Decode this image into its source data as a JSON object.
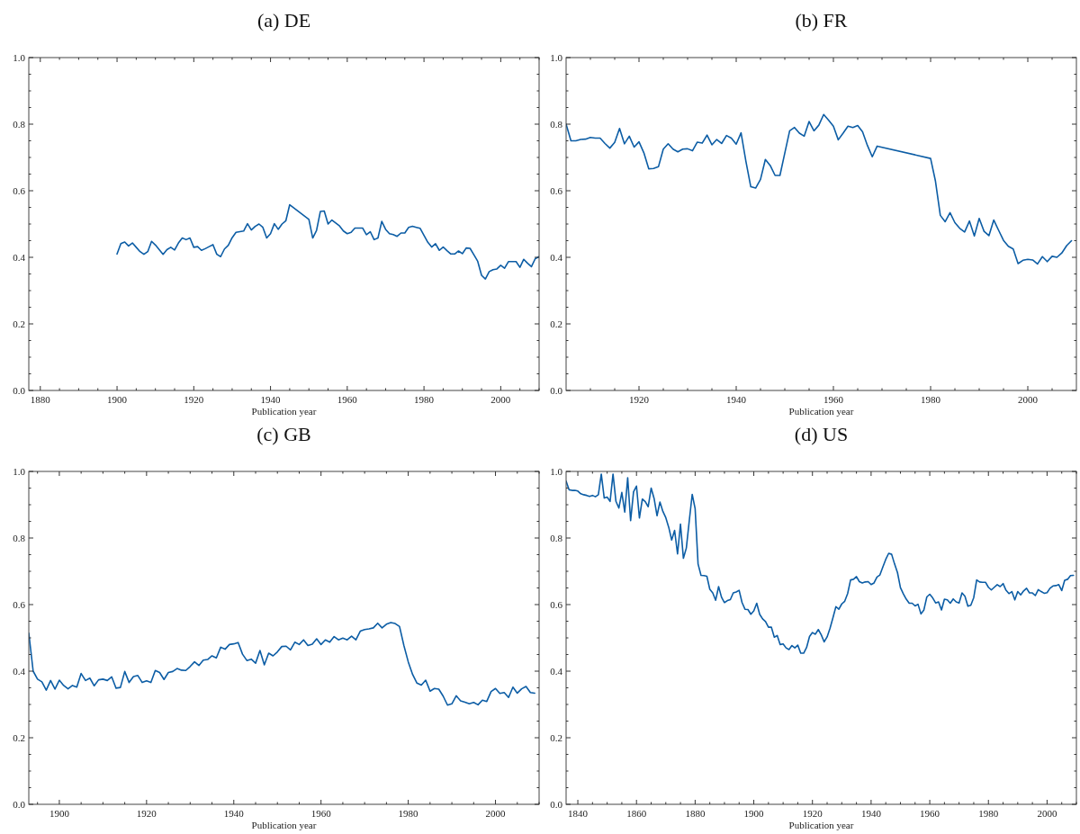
{
  "chart_data": [
    {
      "type": "line",
      "title": "(a) DE",
      "xlabel": "Publication year",
      "xlim": [
        1877,
        2010
      ],
      "ylim": [
        0,
        1
      ],
      "xticks": [
        1880,
        {
          "value": 1885,
          "label": null
        },
        {
          "value": 1890,
          "label": null
        },
        {
          "value": 1895,
          "label": null
        },
        1900,
        {
          "value": 1905,
          "label": null
        },
        {
          "value": 1910,
          "label": null
        },
        {
          "value": 1915,
          "label": null
        },
        1920,
        {
          "value": 1925,
          "label": null
        },
        {
          "value": 1930,
          "label": null
        },
        {
          "value": 1935,
          "label": null
        },
        1940,
        {
          "value": 1945,
          "label": null
        },
        {
          "value": 1950,
          "label": null
        },
        {
          "value": 1955,
          "label": null
        },
        1960,
        {
          "value": 1965,
          "label": null
        },
        {
          "value": 1970,
          "label": null
        },
        {
          "value": 1975,
          "label": null
        },
        1980,
        {
          "value": 1985,
          "label": null
        },
        {
          "value": 1990,
          "label": null
        },
        {
          "value": 1995,
          "label": null
        },
        2000,
        {
          "value": 2005,
          "label": null
        },
        {
          "value": 2010,
          "label": null
        }
      ],
      "yticks": [
        {
          "value": 0,
          "label": "0.0"
        },
        {
          "value": 0.05,
          "label": null
        },
        {
          "value": 0.1,
          "label": null
        },
        {
          "value": 0.15,
          "label": null
        },
        0.2,
        {
          "value": 0.25,
          "label": null
        },
        {
          "value": 0.3,
          "label": null
        },
        {
          "value": 0.35,
          "label": null
        },
        0.4,
        {
          "value": 0.45,
          "label": null
        },
        {
          "value": 0.5,
          "label": null
        },
        {
          "value": 0.55,
          "label": null
        },
        0.6,
        {
          "value": 0.65,
          "label": null
        },
        {
          "value": 0.7,
          "label": null
        },
        {
          "value": 0.75,
          "label": null
        },
        0.8,
        {
          "value": 0.85,
          "label": null
        },
        {
          "value": 0.9,
          "label": null
        },
        {
          "value": 0.95,
          "label": null
        },
        {
          "value": 1,
          "label": "1.0"
        }
      ],
      "series": [
        {
          "color": "#0c5da5",
          "x": [
            1900,
            1901,
            1902,
            1903,
            1904,
            1905,
            1906,
            1907,
            1908,
            1909,
            1910,
            1911,
            1912,
            1913,
            1914,
            1915,
            1916,
            1917,
            1918,
            1919,
            1920,
            1921,
            1922,
            1923,
            1924,
            1925,
            1926,
            1927,
            1928,
            1929,
            1930,
            1931,
            1932,
            1933,
            1934,
            1935,
            1936,
            1937,
            1938,
            1939,
            1940,
            1941,
            1942,
            1943,
            1944,
            1945,
            1950,
            1951,
            1952,
            1953,
            1954,
            1955,
            1956,
            1957,
            1958,
            1959,
            1960,
            1961,
            1962,
            1963,
            1964,
            1965,
            1966,
            1967,
            1968,
            1969,
            1970,
            1971,
            1972,
            1973,
            1974,
            1975,
            1976,
            1977,
            1978,
            1979,
            1980,
            1981,
            1982,
            1983,
            1984,
            1985,
            1986,
            1987,
            1988,
            1989,
            1990,
            1991,
            1992,
            1993,
            1994,
            1995,
            1996,
            1997,
            1998,
            1999,
            2000,
            2001,
            2002,
            2003,
            2004,
            2005,
            2006,
            2007,
            2008,
            2009,
            2010
          ],
          "values": [
            0.41,
            0.441,
            0.446,
            0.434,
            0.443,
            0.43,
            0.417,
            0.409,
            0.417,
            0.448,
            0.437,
            0.423,
            0.409,
            0.423,
            0.43,
            0.422,
            0.443,
            0.458,
            0.453,
            0.458,
            0.43,
            0.432,
            0.421,
            0.426,
            0.432,
            0.438,
            0.409,
            0.402,
            0.425,
            0.436,
            0.459,
            0.475,
            0.477,
            0.479,
            0.501,
            0.482,
            0.493,
            0.5,
            0.49,
            0.458,
            0.471,
            0.501,
            0.484,
            0.5,
            0.51,
            0.558,
            0.514,
            0.458,
            0.481,
            0.538,
            0.539,
            0.5,
            0.512,
            0.503,
            0.494,
            0.479,
            0.471,
            0.475,
            0.488,
            0.488,
            0.488,
            0.468,
            0.477,
            0.453,
            0.458,
            0.508,
            0.484,
            0.471,
            0.468,
            0.463,
            0.473,
            0.473,
            0.49,
            0.493,
            0.49,
            0.487,
            0.466,
            0.445,
            0.431,
            0.441,
            0.421,
            0.431,
            0.42,
            0.41,
            0.41,
            0.419,
            0.411,
            0.428,
            0.427,
            0.408,
            0.388,
            0.346,
            0.335,
            0.357,
            0.363,
            0.365,
            0.376,
            0.367,
            0.387,
            0.387,
            0.387,
            0.37,
            0.394,
            0.382,
            0.372,
            0.396,
            0.402
          ]
        }
      ]
    },
    {
      "type": "line",
      "title": "(b) FR",
      "xlabel": "Publication year",
      "xlim": [
        1905,
        2010
      ],
      "ylim": [
        0,
        1
      ],
      "xticks": [
        {
          "value": 1910,
          "label": null
        },
        {
          "value": 1915,
          "label": null
        },
        1920,
        {
          "value": 1925,
          "label": null
        },
        {
          "value": 1930,
          "label": null
        },
        {
          "value": 1935,
          "label": null
        },
        1940,
        {
          "value": 1945,
          "label": null
        },
        {
          "value": 1950,
          "label": null
        },
        {
          "value": 1955,
          "label": null
        },
        1960,
        {
          "value": 1965,
          "label": null
        },
        {
          "value": 1970,
          "label": null
        },
        {
          "value": 1975,
          "label": null
        },
        1980,
        {
          "value": 1985,
          "label": null
        },
        {
          "value": 1990,
          "label": null
        },
        {
          "value": 1995,
          "label": null
        },
        2000,
        {
          "value": 2005,
          "label": null
        }
      ],
      "yticks": [
        {
          "value": 0,
          "label": "0.0"
        },
        {
          "value": 0.05,
          "label": null
        },
        {
          "value": 0.1,
          "label": null
        },
        {
          "value": 0.15,
          "label": null
        },
        0.2,
        {
          "value": 0.25,
          "label": null
        },
        {
          "value": 0.3,
          "label": null
        },
        {
          "value": 0.35,
          "label": null
        },
        0.4,
        {
          "value": 0.45,
          "label": null
        },
        {
          "value": 0.5,
          "label": null
        },
        {
          "value": 0.55,
          "label": null
        },
        0.6,
        {
          "value": 0.65,
          "label": null
        },
        {
          "value": 0.7,
          "label": null
        },
        {
          "value": 0.75,
          "label": null
        },
        0.8,
        {
          "value": 0.85,
          "label": null
        },
        {
          "value": 0.9,
          "label": null
        },
        {
          "value": 0.95,
          "label": null
        },
        {
          "value": 1,
          "label": "1.0"
        }
      ],
      "series": [
        {
          "color": "#0c5da5",
          "x": [
            1905,
            1906,
            1907,
            1908,
            1909,
            1910,
            1911,
            1912,
            1913,
            1914,
            1915,
            1916,
            1917,
            1918,
            1919,
            1920,
            1921,
            1922,
            1923,
            1924,
            1925,
            1926,
            1927,
            1928,
            1929,
            1930,
            1931,
            1932,
            1933,
            1934,
            1935,
            1936,
            1937,
            1938,
            1939,
            1940,
            1941,
            1942,
            1943,
            1944,
            1945,
            1946,
            1947,
            1948,
            1949,
            1950,
            1951,
            1952,
            1953,
            1954,
            1955,
            1956,
            1957,
            1958,
            1959,
            1960,
            1961,
            1962,
            1963,
            1964,
            1965,
            1966,
            1967,
            1968,
            1969,
            1980,
            1981,
            1982,
            1983,
            1984,
            1985,
            1986,
            1987,
            1988,
            1989,
            1990,
            1991,
            1992,
            1993,
            1994,
            1995,
            1996,
            1997,
            1998,
            1999,
            2000,
            2001,
            2002,
            2003,
            2004,
            2005,
            2006,
            2007,
            2008,
            2009
          ],
          "values": [
            0.8,
            0.75,
            0.75,
            0.754,
            0.755,
            0.76,
            0.758,
            0.758,
            0.742,
            0.728,
            0.745,
            0.787,
            0.741,
            0.764,
            0.731,
            0.747,
            0.714,
            0.666,
            0.667,
            0.672,
            0.725,
            0.741,
            0.725,
            0.717,
            0.725,
            0.726,
            0.72,
            0.746,
            0.743,
            0.767,
            0.738,
            0.754,
            0.742,
            0.766,
            0.758,
            0.74,
            0.774,
            0.688,
            0.612,
            0.608,
            0.634,
            0.694,
            0.676,
            0.646,
            0.646,
            0.713,
            0.78,
            0.79,
            0.773,
            0.764,
            0.808,
            0.78,
            0.797,
            0.829,
            0.812,
            0.794,
            0.753,
            0.773,
            0.794,
            0.79,
            0.796,
            0.777,
            0.736,
            0.702,
            0.734,
            0.697,
            0.629,
            0.526,
            0.507,
            0.534,
            0.504,
            0.487,
            0.476,
            0.509,
            0.464,
            0.517,
            0.478,
            0.465,
            0.512,
            0.481,
            0.451,
            0.433,
            0.425,
            0.381,
            0.391,
            0.394,
            0.392,
            0.38,
            0.402,
            0.387,
            0.403,
            0.4,
            0.413,
            0.435,
            0.45
          ]
        }
      ]
    },
    {
      "type": "line",
      "title": "(c) GB",
      "xlabel": "Publication year",
      "xlim": [
        1893,
        2010
      ],
      "ylim": [
        0,
        1
      ],
      "xticks": [
        {
          "value": 1895,
          "label": null
        },
        1900,
        {
          "value": 1905,
          "label": null
        },
        {
          "value": 1910,
          "label": null
        },
        {
          "value": 1915,
          "label": null
        },
        1920,
        {
          "value": 1925,
          "label": null
        },
        {
          "value": 1930,
          "label": null
        },
        {
          "value": 1935,
          "label": null
        },
        1940,
        {
          "value": 1945,
          "label": null
        },
        {
          "value": 1950,
          "label": null
        },
        {
          "value": 1955,
          "label": null
        },
        1960,
        {
          "value": 1965,
          "label": null
        },
        {
          "value": 1970,
          "label": null
        },
        {
          "value": 1975,
          "label": null
        },
        1980,
        {
          "value": 1985,
          "label": null
        },
        {
          "value": 1990,
          "label": null
        },
        {
          "value": 1995,
          "label": null
        },
        2000,
        {
          "value": 2005,
          "label": null
        },
        {
          "value": 2010,
          "label": null
        }
      ],
      "yticks": [
        {
          "value": 0,
          "label": "0.0"
        },
        {
          "value": 0.05,
          "label": null
        },
        {
          "value": 0.1,
          "label": null
        },
        {
          "value": 0.15,
          "label": null
        },
        0.2,
        {
          "value": 0.25,
          "label": null
        },
        {
          "value": 0.3,
          "label": null
        },
        {
          "value": 0.35,
          "label": null
        },
        0.4,
        {
          "value": 0.45,
          "label": null
        },
        {
          "value": 0.5,
          "label": null
        },
        {
          "value": 0.55,
          "label": null
        },
        0.6,
        {
          "value": 0.65,
          "label": null
        },
        {
          "value": 0.7,
          "label": null
        },
        {
          "value": 0.75,
          "label": null
        },
        0.8,
        {
          "value": 0.85,
          "label": null
        },
        {
          "value": 0.9,
          "label": null
        },
        {
          "value": 0.95,
          "label": null
        },
        {
          "value": 1,
          "label": "1.0"
        }
      ],
      "series": [
        {
          "color": "#0c5da5",
          "x": [
            1893,
            1894,
            1895,
            1896,
            1897,
            1898,
            1899,
            1900,
            1901,
            1902,
            1903,
            1904,
            1905,
            1906,
            1907,
            1908,
            1909,
            1910,
            1911,
            1912,
            1913,
            1914,
            1915,
            1916,
            1917,
            1918,
            1919,
            1920,
            1921,
            1922,
            1923,
            1924,
            1925,
            1926,
            1927,
            1928,
            1929,
            1930,
            1931,
            1932,
            1933,
            1934,
            1935,
            1936,
            1937,
            1938,
            1939,
            1940,
            1941,
            1942,
            1943,
            1944,
            1945,
            1946,
            1947,
            1948,
            1949,
            1950,
            1951,
            1952,
            1953,
            1954,
            1955,
            1956,
            1957,
            1958,
            1959,
            1960,
            1961,
            1962,
            1963,
            1964,
            1965,
            1966,
            1967,
            1968,
            1969,
            1970,
            1971,
            1972,
            1973,
            1974,
            1975,
            1976,
            1977,
            1978,
            1979,
            1980,
            1981,
            1982,
            1983,
            1984,
            1985,
            1986,
            1987,
            1988,
            1989,
            1990,
            1991,
            1992,
            1993,
            1994,
            1995,
            1996,
            1997,
            1998,
            1999,
            2000,
            2001,
            2002,
            2003,
            2004,
            2005,
            2006,
            2007,
            2008,
            2009
          ],
          "values": [
            0.514,
            0.4,
            0.376,
            0.368,
            0.343,
            0.372,
            0.346,
            0.373,
            0.357,
            0.347,
            0.357,
            0.352,
            0.393,
            0.372,
            0.379,
            0.356,
            0.374,
            0.376,
            0.372,
            0.383,
            0.349,
            0.351,
            0.399,
            0.366,
            0.384,
            0.387,
            0.366,
            0.371,
            0.366,
            0.402,
            0.396,
            0.375,
            0.396,
            0.399,
            0.408,
            0.403,
            0.402,
            0.414,
            0.428,
            0.417,
            0.433,
            0.435,
            0.446,
            0.44,
            0.472,
            0.466,
            0.48,
            0.482,
            0.486,
            0.451,
            0.432,
            0.436,
            0.424,
            0.462,
            0.419,
            0.454,
            0.446,
            0.458,
            0.474,
            0.475,
            0.464,
            0.487,
            0.48,
            0.494,
            0.477,
            0.481,
            0.497,
            0.48,
            0.494,
            0.487,
            0.504,
            0.494,
            0.499,
            0.494,
            0.505,
            0.494,
            0.52,
            0.525,
            0.527,
            0.53,
            0.544,
            0.53,
            0.541,
            0.546,
            0.543,
            0.534,
            0.477,
            0.428,
            0.39,
            0.364,
            0.358,
            0.373,
            0.34,
            0.348,
            0.346,
            0.325,
            0.298,
            0.302,
            0.326,
            0.311,
            0.307,
            0.302,
            0.306,
            0.299,
            0.313,
            0.309,
            0.339,
            0.348,
            0.333,
            0.336,
            0.321,
            0.352,
            0.334,
            0.347,
            0.354,
            0.336,
            0.334
          ]
        }
      ]
    },
    {
      "type": "line",
      "title": "(d) US",
      "xlabel": "Publication year",
      "xlim": [
        1836,
        2010
      ],
      "ylim": [
        0,
        1
      ],
      "xticks": [
        1840,
        {
          "value": 1845,
          "label": null
        },
        {
          "value": 1850,
          "label": null
        },
        {
          "value": 1855,
          "label": null
        },
        1860,
        {
          "value": 1865,
          "label": null
        },
        {
          "value": 1870,
          "label": null
        },
        {
          "value": 1875,
          "label": null
        },
        1880,
        {
          "value": 1885,
          "label": null
        },
        {
          "value": 1890,
          "label": null
        },
        {
          "value": 1895,
          "label": null
        },
        1900,
        {
          "value": 1905,
          "label": null
        },
        {
          "value": 1910,
          "label": null
        },
        {
          "value": 1915,
          "label": null
        },
        1920,
        {
          "value": 1925,
          "label": null
        },
        {
          "value": 1930,
          "label": null
        },
        {
          "value": 1935,
          "label": null
        },
        1940,
        {
          "value": 1945,
          "label": null
        },
        {
          "value": 1950,
          "label": null
        },
        {
          "value": 1955,
          "label": null
        },
        1960,
        {
          "value": 1965,
          "label": null
        },
        {
          "value": 1970,
          "label": null
        },
        {
          "value": 1975,
          "label": null
        },
        1980,
        {
          "value": 1985,
          "label": null
        },
        {
          "value": 1990,
          "label": null
        },
        {
          "value": 1995,
          "label": null
        },
        2000,
        {
          "value": 2005,
          "label": null
        },
        {
          "value": 2010,
          "label": null
        }
      ],
      "yticks": [
        {
          "value": 0,
          "label": "0.0"
        },
        {
          "value": 0.05,
          "label": null
        },
        {
          "value": 0.1,
          "label": null
        },
        {
          "value": 0.15,
          "label": null
        },
        0.2,
        {
          "value": 0.25,
          "label": null
        },
        {
          "value": 0.3,
          "label": null
        },
        {
          "value": 0.35,
          "label": null
        },
        0.4,
        {
          "value": 0.45,
          "label": null
        },
        {
          "value": 0.5,
          "label": null
        },
        {
          "value": 0.55,
          "label": null
        },
        0.6,
        {
          "value": 0.65,
          "label": null
        },
        {
          "value": 0.7,
          "label": null
        },
        {
          "value": 0.75,
          "label": null
        },
        0.8,
        {
          "value": 0.85,
          "label": null
        },
        {
          "value": 0.9,
          "label": null
        },
        {
          "value": 0.95,
          "label": null
        },
        {
          "value": 1,
          "label": "1.0"
        }
      ],
      "series": [
        {
          "color": "#0c5da5",
          "x": [
            1836,
            1837,
            1838,
            1839,
            1840,
            1841,
            1842,
            1843,
            1844,
            1845,
            1846,
            1847,
            1848,
            1849,
            1850,
            1851,
            1852,
            1853,
            1854,
            1855,
            1856,
            1857,
            1858,
            1859,
            1860,
            1861,
            1862,
            1863,
            1864,
            1865,
            1866,
            1867,
            1868,
            1869,
            1870,
            1871,
            1872,
            1873,
            1874,
            1875,
            1876,
            1877,
            1878,
            1879,
            1880,
            1881,
            1882,
            1883,
            1884,
            1885,
            1886,
            1887,
            1888,
            1889,
            1890,
            1891,
            1892,
            1893,
            1894,
            1895,
            1896,
            1897,
            1898,
            1899,
            1900,
            1901,
            1902,
            1903,
            1904,
            1905,
            1906,
            1907,
            1908,
            1909,
            1910,
            1911,
            1912,
            1913,
            1914,
            1915,
            1916,
            1917,
            1918,
            1919,
            1920,
            1921,
            1922,
            1923,
            1924,
            1925,
            1926,
            1927,
            1928,
            1929,
            1930,
            1931,
            1932,
            1933,
            1934,
            1935,
            1936,
            1937,
            1938,
            1939,
            1940,
            1941,
            1942,
            1943,
            1944,
            1945,
            1946,
            1947,
            1948,
            1949,
            1950,
            1951,
            1952,
            1953,
            1954,
            1955,
            1956,
            1957,
            1958,
            1959,
            1960,
            1961,
            1962,
            1963,
            1964,
            1965,
            1966,
            1967,
            1968,
            1969,
            1970,
            1971,
            1972,
            1973,
            1974,
            1975,
            1976,
            1977,
            1978,
            1979,
            1980,
            1981,
            1982,
            1983,
            1984,
            1985,
            1986,
            1987,
            1988,
            1989,
            1990,
            1991,
            1992,
            1993,
            1994,
            1995,
            1996,
            1997,
            1998,
            1999,
            2000,
            2001,
            2002,
            2003,
            2004,
            2005,
            2006,
            2007,
            2008,
            2009
          ],
          "values": [
            0.971,
            0.945,
            0.943,
            0.943,
            0.941,
            0.933,
            0.93,
            0.928,
            0.925,
            0.928,
            0.924,
            0.93,
            0.992,
            0.92,
            0.923,
            0.91,
            0.992,
            0.91,
            0.89,
            0.937,
            0.878,
            0.981,
            0.852,
            0.939,
            0.956,
            0.86,
            0.917,
            0.909,
            0.894,
            0.95,
            0.919,
            0.867,
            0.908,
            0.88,
            0.861,
            0.832,
            0.794,
            0.823,
            0.752,
            0.842,
            0.739,
            0.77,
            0.852,
            0.931,
            0.888,
            0.722,
            0.688,
            0.687,
            0.685,
            0.646,
            0.635,
            0.613,
            0.654,
            0.622,
            0.606,
            0.612,
            0.615,
            0.635,
            0.638,
            0.643,
            0.606,
            0.586,
            0.585,
            0.571,
            0.581,
            0.604,
            0.571,
            0.557,
            0.549,
            0.532,
            0.532,
            0.502,
            0.507,
            0.48,
            0.482,
            0.47,
            0.465,
            0.477,
            0.47,
            0.478,
            0.454,
            0.454,
            0.471,
            0.504,
            0.516,
            0.511,
            0.525,
            0.509,
            0.488,
            0.503,
            0.529,
            0.561,
            0.594,
            0.586,
            0.602,
            0.61,
            0.633,
            0.674,
            0.676,
            0.684,
            0.669,
            0.665,
            0.668,
            0.669,
            0.66,
            0.665,
            0.683,
            0.689,
            0.713,
            0.736,
            0.754,
            0.751,
            0.722,
            0.696,
            0.651,
            0.632,
            0.616,
            0.604,
            0.604,
            0.596,
            0.601,
            0.572,
            0.584,
            0.623,
            0.631,
            0.62,
            0.605,
            0.608,
            0.584,
            0.616,
            0.614,
            0.604,
            0.617,
            0.608,
            0.605,
            0.635,
            0.625,
            0.595,
            0.598,
            0.621,
            0.674,
            0.668,
            0.667,
            0.667,
            0.652,
            0.644,
            0.652,
            0.66,
            0.654,
            0.663,
            0.643,
            0.633,
            0.639,
            0.614,
            0.639,
            0.629,
            0.641,
            0.649,
            0.635,
            0.635,
            0.627,
            0.645,
            0.639,
            0.634,
            0.636,
            0.649,
            0.656,
            0.657,
            0.66,
            0.642,
            0.673,
            0.676,
            0.687,
            0.688
          ]
        }
      ]
    }
  ]
}
